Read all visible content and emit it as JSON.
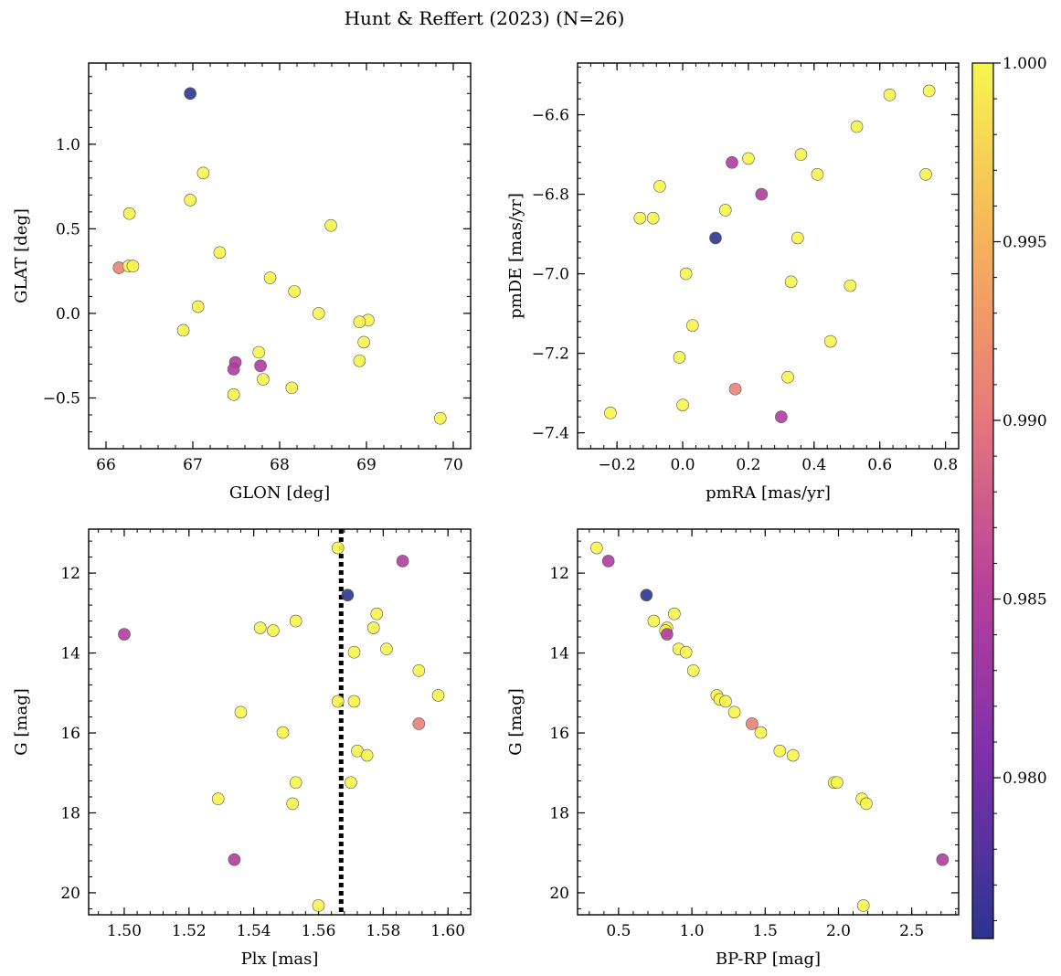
{
  "figure": {
    "title": "Hunt & Reffert (2023) (N=26)"
  },
  "colorbar": {
    "colormap": "plasma",
    "range": [
      0.9755,
      1.0
    ],
    "ticks": [
      0.98,
      0.985,
      0.99,
      0.995,
      1.0
    ],
    "tick_labels": [
      "0.980",
      "0.985",
      "0.990",
      "0.995",
      "1.000"
    ]
  },
  "chart_data": [
    {
      "type": "scatter",
      "title": "",
      "xlabel": "GLON [deg]",
      "ylabel": "GLAT [deg]",
      "xlim": [
        65.8,
        70.2
      ],
      "ylim": [
        -0.8,
        1.48
      ],
      "y_inverted": false,
      "xticks": [
        66,
        67,
        68,
        69,
        70
      ],
      "xtick_labels": [
        "66",
        "67",
        "68",
        "69",
        "70"
      ],
      "yticks": [
        -0.5,
        0.0,
        0.5,
        1.0
      ],
      "ytick_labels": [
        "−0.5",
        "0.0",
        "0.5",
        "1.0"
      ],
      "reference_line": null,
      "points": [
        {
          "x": 66.97,
          "y": 1.3,
          "c": 0.9755
        },
        {
          "x": 67.12,
          "y": 0.83,
          "c": 1.0
        },
        {
          "x": 66.97,
          "y": 0.67,
          "c": 1.0
        },
        {
          "x": 66.27,
          "y": 0.59,
          "c": 1.0
        },
        {
          "x": 68.59,
          "y": 0.52,
          "c": 1.0
        },
        {
          "x": 67.31,
          "y": 0.36,
          "c": 1.0
        },
        {
          "x": 66.15,
          "y": 0.27,
          "c": 0.991
        },
        {
          "x": 66.26,
          "y": 0.28,
          "c": 1.0
        },
        {
          "x": 66.31,
          "y": 0.28,
          "c": 1.0
        },
        {
          "x": 67.89,
          "y": 0.21,
          "c": 1.0
        },
        {
          "x": 68.17,
          "y": 0.13,
          "c": 1.0
        },
        {
          "x": 67.06,
          "y": 0.04,
          "c": 1.0
        },
        {
          "x": 68.45,
          "y": 0.0,
          "c": 1.0
        },
        {
          "x": 66.89,
          "y": -0.1,
          "c": 1.0
        },
        {
          "x": 69.02,
          "y": -0.04,
          "c": 1.0
        },
        {
          "x": 68.92,
          "y": -0.05,
          "c": 1.0
        },
        {
          "x": 68.97,
          "y": -0.17,
          "c": 1.0
        },
        {
          "x": 67.76,
          "y": -0.23,
          "c": 1.0
        },
        {
          "x": 68.92,
          "y": -0.28,
          "c": 1.0
        },
        {
          "x": 67.49,
          "y": -0.29,
          "c": 0.9845
        },
        {
          "x": 67.47,
          "y": -0.33,
          "c": 0.9845
        },
        {
          "x": 67.78,
          "y": -0.31,
          "c": 0.9845
        },
        {
          "x": 67.81,
          "y": -0.39,
          "c": 1.0
        },
        {
          "x": 68.14,
          "y": -0.44,
          "c": 1.0
        },
        {
          "x": 67.47,
          "y": -0.48,
          "c": 1.0
        },
        {
          "x": 69.85,
          "y": -0.62,
          "c": 1.0
        }
      ]
    },
    {
      "type": "scatter",
      "title": "",
      "xlabel": "pmRA [mas/yr]",
      "ylabel": "pmDE [mas/yr]",
      "xlim": [
        -0.32,
        0.84
      ],
      "ylim": [
        -7.44,
        -6.47
      ],
      "y_inverted": false,
      "xticks": [
        -0.2,
        0.0,
        0.2,
        0.4,
        0.6,
        0.8
      ],
      "xtick_labels": [
        "−0.2",
        "0.0",
        "0.2",
        "0.4",
        "0.6",
        "0.8"
      ],
      "yticks": [
        -7.4,
        -7.2,
        -7.0,
        -6.8,
        -6.6
      ],
      "ytick_labels": [
        "−7.4",
        "−7.2",
        "−7.0",
        "−6.8",
        "−6.6"
      ],
      "reference_line": null,
      "points": [
        {
          "x": 0.75,
          "y": -6.54,
          "c": 1.0
        },
        {
          "x": 0.63,
          "y": -6.55,
          "c": 1.0
        },
        {
          "x": 0.53,
          "y": -6.63,
          "c": 1.0
        },
        {
          "x": 0.36,
          "y": -6.7,
          "c": 1.0
        },
        {
          "x": 0.2,
          "y": -6.71,
          "c": 1.0
        },
        {
          "x": 0.15,
          "y": -6.72,
          "c": 0.9845
        },
        {
          "x": 0.41,
          "y": -6.75,
          "c": 1.0
        },
        {
          "x": 0.74,
          "y": -6.75,
          "c": 1.0
        },
        {
          "x": -0.07,
          "y": -6.78,
          "c": 1.0
        },
        {
          "x": 0.24,
          "y": -6.8,
          "c": 0.9845
        },
        {
          "x": 0.13,
          "y": -6.84,
          "c": 1.0
        },
        {
          "x": -0.13,
          "y": -6.86,
          "c": 1.0
        },
        {
          "x": -0.09,
          "y": -6.86,
          "c": 1.0
        },
        {
          "x": 0.1,
          "y": -6.91,
          "c": 0.9755
        },
        {
          "x": 0.35,
          "y": -6.91,
          "c": 1.0
        },
        {
          "x": 0.01,
          "y": -7.0,
          "c": 1.0
        },
        {
          "x": 0.33,
          "y": -7.02,
          "c": 1.0
        },
        {
          "x": 0.51,
          "y": -7.03,
          "c": 1.0
        },
        {
          "x": 0.03,
          "y": -7.13,
          "c": 1.0
        },
        {
          "x": 0.45,
          "y": -7.17,
          "c": 1.0
        },
        {
          "x": -0.01,
          "y": -7.21,
          "c": 1.0
        },
        {
          "x": 0.32,
          "y": -7.26,
          "c": 1.0
        },
        {
          "x": 0.16,
          "y": -7.29,
          "c": 0.991
        },
        {
          "x": 0.0,
          "y": -7.33,
          "c": 1.0
        },
        {
          "x": -0.22,
          "y": -7.35,
          "c": 1.0
        },
        {
          "x": 0.3,
          "y": -7.36,
          "c": 0.9845
        }
      ]
    },
    {
      "type": "scatter",
      "title": "",
      "xlabel": "Plx [mas]",
      "ylabel": "G [mag]",
      "xlim": [
        1.489,
        1.607
      ],
      "ylim": [
        20.55,
        10.9
      ],
      "y_inverted": true,
      "xticks": [
        1.5,
        1.52,
        1.54,
        1.56,
        1.58,
        1.6
      ],
      "xtick_labels": [
        "1.50",
        "1.52",
        "1.54",
        "1.56",
        "1.58",
        "1.60"
      ],
      "yticks": [
        12,
        14,
        16,
        18,
        20
      ],
      "ytick_labels": [
        "12",
        "14",
        "16",
        "18",
        "20"
      ],
      "reference_line": {
        "axis": "x",
        "value": 1.567,
        "style": "dotted"
      },
      "points": [
        {
          "x": 1.566,
          "y": 11.37,
          "c": 1.0
        },
        {
          "x": 1.586,
          "y": 11.7,
          "c": 0.9845
        },
        {
          "x": 1.569,
          "y": 12.55,
          "c": 0.9755
        },
        {
          "x": 1.578,
          "y": 13.02,
          "c": 1.0
        },
        {
          "x": 1.553,
          "y": 13.2,
          "c": 1.0
        },
        {
          "x": 1.542,
          "y": 13.37,
          "c": 1.0
        },
        {
          "x": 1.577,
          "y": 13.37,
          "c": 1.0
        },
        {
          "x": 1.546,
          "y": 13.44,
          "c": 1.0
        },
        {
          "x": 1.5,
          "y": 13.53,
          "c": 0.9845
        },
        {
          "x": 1.581,
          "y": 13.9,
          "c": 1.0
        },
        {
          "x": 1.571,
          "y": 13.98,
          "c": 1.0
        },
        {
          "x": 1.591,
          "y": 14.44,
          "c": 1.0
        },
        {
          "x": 1.597,
          "y": 15.06,
          "c": 1.0
        },
        {
          "x": 1.566,
          "y": 15.21,
          "c": 1.0
        },
        {
          "x": 1.571,
          "y": 15.21,
          "c": 1.0
        },
        {
          "x": 1.536,
          "y": 15.48,
          "c": 1.0
        },
        {
          "x": 1.591,
          "y": 15.77,
          "c": 0.991
        },
        {
          "x": 1.549,
          "y": 15.99,
          "c": 1.0
        },
        {
          "x": 1.572,
          "y": 16.45,
          "c": 1.0
        },
        {
          "x": 1.575,
          "y": 16.56,
          "c": 1.0
        },
        {
          "x": 1.553,
          "y": 17.24,
          "c": 1.0
        },
        {
          "x": 1.57,
          "y": 17.24,
          "c": 1.0
        },
        {
          "x": 1.529,
          "y": 17.65,
          "c": 1.0
        },
        {
          "x": 1.552,
          "y": 17.77,
          "c": 1.0
        },
        {
          "x": 1.534,
          "y": 19.17,
          "c": 0.9845
        },
        {
          "x": 1.56,
          "y": 20.32,
          "c": 1.0
        }
      ]
    },
    {
      "type": "scatter",
      "title": "",
      "xlabel": "BP-RP [mag]",
      "ylabel": "G [mag]",
      "xlim": [
        0.22,
        2.82
      ],
      "ylim": [
        20.55,
        10.9
      ],
      "y_inverted": true,
      "xticks": [
        0.5,
        1.0,
        1.5,
        2.0,
        2.5
      ],
      "xtick_labels": [
        "0.5",
        "1.0",
        "1.5",
        "2.0",
        "2.5"
      ],
      "yticks": [
        12,
        14,
        16,
        18,
        20
      ],
      "ytick_labels": [
        "12",
        "14",
        "16",
        "18",
        "20"
      ],
      "reference_line": null,
      "points": [
        {
          "x": 0.35,
          "y": 11.37,
          "c": 1.0
        },
        {
          "x": 0.43,
          "y": 11.7,
          "c": 0.9845
        },
        {
          "x": 0.69,
          "y": 12.55,
          "c": 0.9755
        },
        {
          "x": 0.88,
          "y": 13.02,
          "c": 1.0
        },
        {
          "x": 0.74,
          "y": 13.2,
          "c": 1.0
        },
        {
          "x": 0.83,
          "y": 13.37,
          "c": 1.0
        },
        {
          "x": 0.82,
          "y": 13.44,
          "c": 1.0
        },
        {
          "x": 0.83,
          "y": 13.53,
          "c": 0.9845
        },
        {
          "x": 0.91,
          "y": 13.9,
          "c": 1.0
        },
        {
          "x": 0.96,
          "y": 13.98,
          "c": 1.0
        },
        {
          "x": 1.01,
          "y": 14.44,
          "c": 1.0
        },
        {
          "x": 1.17,
          "y": 15.06,
          "c": 1.0
        },
        {
          "x": 1.19,
          "y": 15.16,
          "c": 1.0
        },
        {
          "x": 1.23,
          "y": 15.21,
          "c": 1.0
        },
        {
          "x": 1.29,
          "y": 15.48,
          "c": 1.0
        },
        {
          "x": 1.41,
          "y": 15.77,
          "c": 0.991
        },
        {
          "x": 1.47,
          "y": 15.99,
          "c": 1.0
        },
        {
          "x": 1.6,
          "y": 16.45,
          "c": 1.0
        },
        {
          "x": 1.69,
          "y": 16.56,
          "c": 1.0
        },
        {
          "x": 1.97,
          "y": 17.24,
          "c": 1.0
        },
        {
          "x": 1.99,
          "y": 17.24,
          "c": 1.0
        },
        {
          "x": 2.16,
          "y": 17.65,
          "c": 1.0
        },
        {
          "x": 2.19,
          "y": 17.77,
          "c": 1.0
        },
        {
          "x": 2.71,
          "y": 19.17,
          "c": 0.9845
        },
        {
          "x": 2.17,
          "y": 20.32,
          "c": 1.0
        }
      ]
    }
  ]
}
